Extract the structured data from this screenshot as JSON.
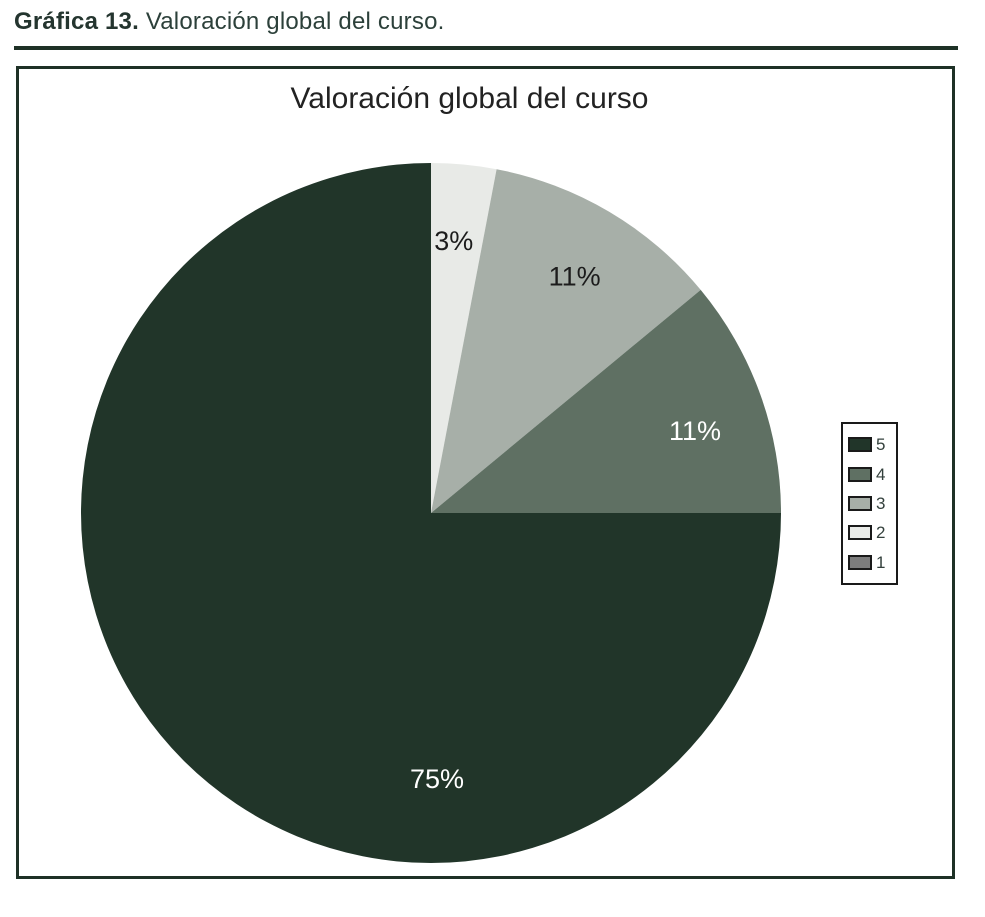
{
  "caption": {
    "label": "Gráfica 13.",
    "text": " Valoración global del curso."
  },
  "chart_data": {
    "type": "pie",
    "title": "Valoración global del curso",
    "start_angle_deg": 0,
    "direction": "clockwise",
    "legend_position": "right",
    "slices": [
      {
        "category": "2",
        "value": 3,
        "display_label": "3%",
        "color": "#e8eae7",
        "label_color": "#1c1c1c",
        "label_angle_deg": 4.8,
        "label_radius_frac": 0.78
      },
      {
        "category": "3",
        "value": 11,
        "display_label": "11%",
        "color": "#a7afa8",
        "label_color": "#1c1c1c",
        "label_angle_deg": 31.3,
        "label_radius_frac": 0.79
      },
      {
        "category": "4",
        "value": 11,
        "display_label": "11%",
        "color": "#5f7063",
        "label_color": "#ffffff",
        "label_angle_deg": 72.7,
        "label_radius_frac": 0.79
      },
      {
        "category": "5",
        "value": 75,
        "display_label": "75%",
        "color": "#213529",
        "label_color": "#ffffff",
        "label_angle_deg": 178.7,
        "label_radius_frac": 0.76
      }
    ],
    "legend": [
      {
        "label": "5",
        "color": "#213529"
      },
      {
        "label": "4",
        "color": "#5f7063"
      },
      {
        "label": "3",
        "color": "#a7afa8"
      },
      {
        "label": "2",
        "color": "#e8eae7"
      },
      {
        "label": "1",
        "color": "#7d7d7d"
      }
    ]
  },
  "colors": {
    "frame": "#1e3126",
    "caption_text": "#2c403a",
    "legend_border": "#1a1a1a"
  }
}
